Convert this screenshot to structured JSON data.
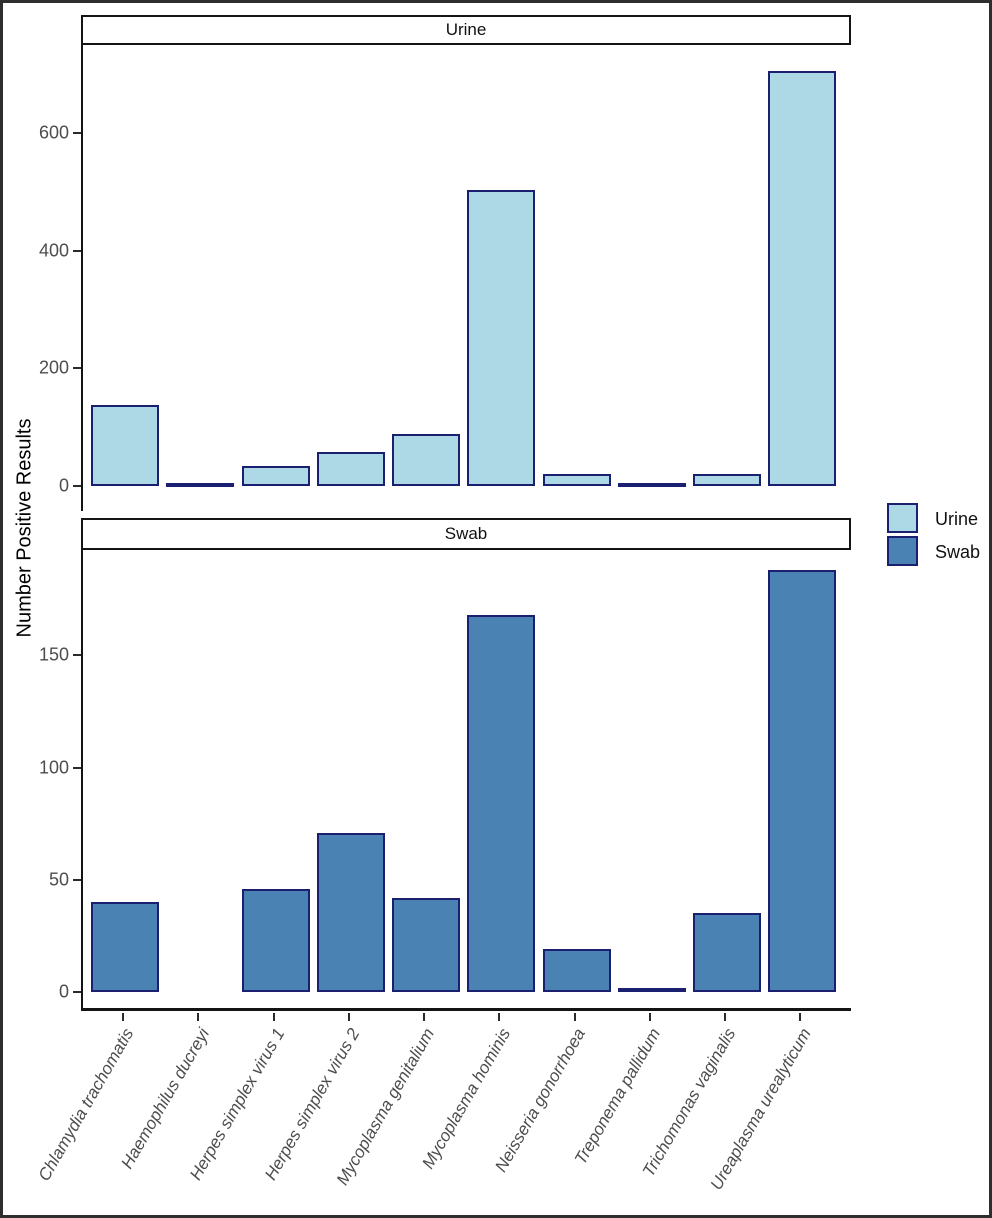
{
  "figure": {
    "y_axis_title": "Number Positive Results",
    "background": "#ffffff",
    "legend": {
      "items": [
        {
          "label": "Urine",
          "color": "#ADD8E6"
        },
        {
          "label": "Swab",
          "color": "#4A82B4"
        }
      ]
    }
  },
  "chart_data": [
    {
      "type": "bar",
      "facet": "Urine",
      "categories": [
        "Chlamydia trachomatis",
        "Haemophilus ducreyi",
        "Herpes simplex virus 1",
        "Herpes simplex virus 2",
        "Mycoplasma genitalium",
        "Mycoplasma hominis",
        "Neisseria gonorrhoea",
        "Treponema pallidum",
        "Trichomonas vaginalis",
        "Ureaplasma urealyticum"
      ],
      "values": [
        138,
        2,
        34,
        57,
        89,
        504,
        20,
        2,
        21,
        706
      ],
      "yticks": [
        0,
        200,
        400,
        600
      ],
      "ylim": [
        0,
        750
      ],
      "ylabel": "Number Positive Results",
      "xlabel": "",
      "grid": false,
      "bar_fill": "#ADD8E6",
      "bar_border": "#1A1F70",
      "legend_position": "right"
    },
    {
      "type": "bar",
      "facet": "Swab",
      "categories": [
        "Chlamydia trachomatis",
        "Haemophilus ducreyi",
        "Herpes simplex virus 1",
        "Herpes simplex virus 2",
        "Mycoplasma genitalium",
        "Mycoplasma hominis",
        "Neisseria gonorrhoea",
        "Treponema pallidum",
        "Trichomonas vaginalis",
        "Ureaplasma urealyticum"
      ],
      "values": [
        40,
        0,
        46,
        71,
        42,
        168,
        19,
        2,
        35,
        188
      ],
      "yticks": [
        0,
        50,
        100,
        150
      ],
      "ylim": [
        0,
        197
      ],
      "ylabel": "Number Positive Results",
      "xlabel": "",
      "grid": false,
      "bar_fill": "#4A82B4",
      "bar_border": "#1A1F70",
      "legend_position": "right"
    }
  ]
}
